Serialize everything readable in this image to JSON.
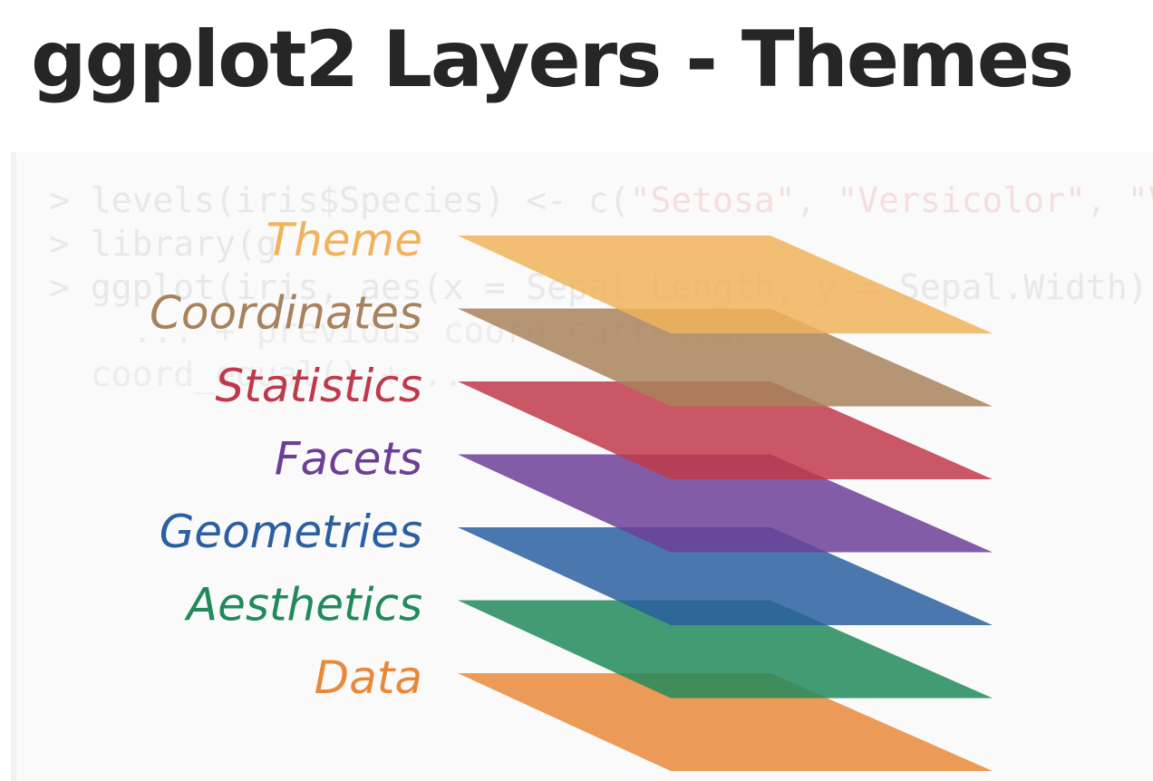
{
  "title": "ggplot2 Layers - Themes",
  "code_lines": [
    {
      "prefix": "> levels(iris$Species) <- c(",
      "strings": [
        "\"Setosa\"",
        ", ",
        "\"Versicolor\"",
        ", ",
        "\"V"
      ]
    },
    {
      "prefix": "> library(g",
      "strings": []
    },
    {
      "prefix": "> ggplot(iris, aes(x = Sepal.Length, y = Sepal.Width))",
      "strings": []
    },
    {
      "prefix": "    ... + previous coord_cartesian",
      "strings": []
    },
    {
      "prefix": "  coord_equal() + ...",
      "strings": []
    }
  ],
  "layers": [
    {
      "label": "Theme",
      "color": "#f0b35c"
    },
    {
      "label": "Coordinates",
      "color": "#a8825c"
    },
    {
      "label": "Statistics",
      "color": "#c0394a"
    },
    {
      "label": "Facets",
      "color": "#6c3f96"
    },
    {
      "label": "Geometries",
      "color": "#2a5fa0"
    },
    {
      "label": "Aesthetics",
      "color": "#228a5a"
    },
    {
      "label": "Data",
      "color": "#e8893a"
    }
  ]
}
